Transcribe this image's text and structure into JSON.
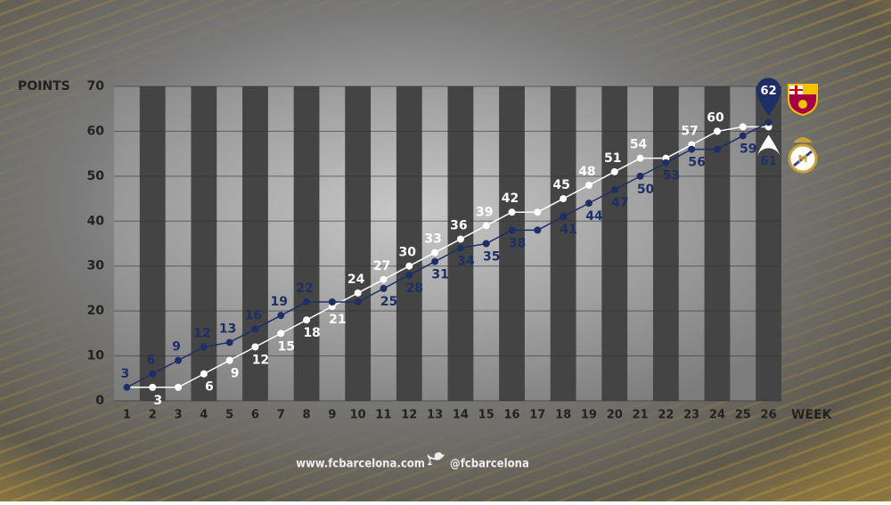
{
  "chart_data": {
    "type": "line",
    "ylabel": "POINTS",
    "xlabel": "WEEK",
    "categories": [
      1,
      2,
      3,
      4,
      5,
      6,
      7,
      8,
      9,
      10,
      11,
      12,
      13,
      14,
      15,
      16,
      17,
      18,
      19,
      20,
      21,
      22,
      23,
      24,
      25,
      26
    ],
    "ylim": [
      0,
      70
    ],
    "yticks": [
      0,
      10,
      20,
      30,
      40,
      50,
      60,
      70
    ],
    "grid": true,
    "series": [
      {
        "color": "#1e2f66",
        "values": [
          3,
          6,
          9,
          12,
          13,
          16,
          19,
          22,
          22,
          22,
          25,
          28,
          31,
          34,
          35,
          38,
          38,
          41,
          44,
          47,
          50,
          53,
          56,
          56,
          59,
          62
        ],
        "value_labels": [
          3,
          6,
          9,
          12,
          13,
          16,
          19,
          22,
          null,
          null,
          25,
          28,
          31,
          34,
          35,
          38,
          null,
          41,
          44,
          47,
          50,
          53,
          56,
          null,
          59,
          62
        ]
      },
      {
        "color": "#ffffff",
        "values": [
          3,
          3,
          3,
          6,
          9,
          12,
          15,
          18,
          21,
          24,
          27,
          30,
          33,
          36,
          39,
          42,
          42,
          45,
          48,
          51,
          54,
          54,
          57,
          60,
          61,
          61
        ],
        "value_labels": [
          null,
          3,
          null,
          6,
          9,
          12,
          15,
          18,
          21,
          24,
          27,
          30,
          33,
          36,
          39,
          42,
          null,
          45,
          48,
          51,
          54,
          null,
          57,
          60,
          null,
          61
        ]
      }
    ]
  },
  "footer": {
    "site": "www.fcbarcelona.com",
    "handle": "@fcbarcelona"
  }
}
